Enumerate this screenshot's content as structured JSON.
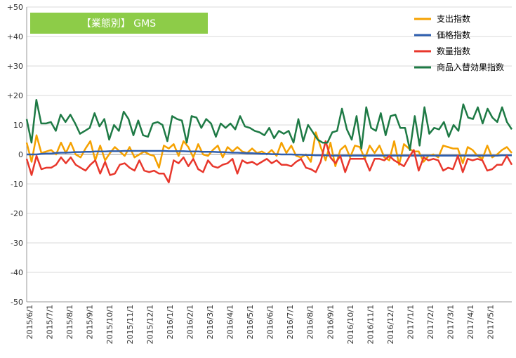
{
  "chart_data": {
    "type": "line",
    "title": "【業態別】 GMS",
    "ylim": [
      -50,
      50
    ],
    "yticks": [
      "+50",
      "+40",
      "+30",
      "+20",
      "10",
      "0",
      "-10",
      "-20",
      "-30",
      "-40",
      "-50"
    ],
    "ytick_values": [
      50,
      40,
      30,
      20,
      10,
      0,
      -10,
      -20,
      -30,
      -40,
      -50
    ],
    "xticks": [
      "2015/6/1",
      "2015/7/1",
      "2015/8/1",
      "2015/9/1",
      "2015/10/1",
      "2015/11/1",
      "2015/12/1",
      "2016/1/1",
      "2016/2/1",
      "2016/3/1",
      "2016/4/1",
      "2016/5/1",
      "2016/6/1",
      "2016/7/1",
      "2016/8/1",
      "2016/9/1",
      "2016/10/1",
      "2016/11/1",
      "2016/12/1",
      "2017/1/1",
      "2017/2/1",
      "2017/3/1",
      "2017/4/1",
      "2017/5/1"
    ],
    "grid": true,
    "legend_position": "top-right",
    "series": [
      {
        "name": "支出指数",
        "color": "#f5a100",
        "values": [
          4,
          -2.5,
          6.5,
          0.5,
          1,
          1.5,
          0,
          4,
          0.5,
          4,
          0,
          -1,
          2,
          4.5,
          -2,
          3,
          -2,
          0.5,
          2.5,
          1,
          -0.5,
          2.5,
          -1,
          0,
          1,
          0,
          -0.5,
          -4.5,
          3,
          2,
          3.5,
          -0.5,
          4.5,
          2.5,
          -1,
          3.5,
          0,
          -0.5,
          1.5,
          3,
          -1,
          2.5,
          1,
          2.5,
          1,
          0.5,
          2,
          0.5,
          1,
          0,
          1.5,
          -0.5,
          4,
          0.5,
          3,
          -0.5,
          -1,
          0,
          -2.5,
          7.5,
          2.5,
          -2,
          4,
          -4,
          1.5,
          3,
          -1,
          3,
          2.5,
          -1.5,
          3,
          0.5,
          3,
          -1,
          -2,
          4.5,
          -3.5,
          3.5,
          2,
          1,
          1,
          -2.5,
          -0.5,
          0,
          -1,
          3,
          2.5,
          2,
          2,
          -3,
          2.5,
          1.5,
          -0.5,
          -1.5,
          3,
          -1,
          0,
          1.5,
          2.5,
          0.5
        ]
      },
      {
        "name": "価格指数",
        "color": "#2e5eae",
        "values": [
          0,
          0,
          0,
          0.2,
          0.3,
          0.3,
          0.5,
          0.6,
          0.6,
          0.7,
          0.8,
          0.8,
          0.9,
          0.9,
          1,
          1,
          1,
          1.1,
          1.1,
          1.1,
          1.2,
          1.2,
          1.2,
          1.2,
          1.2,
          1.2,
          1.2,
          1.2,
          1.2,
          1.1,
          1.1,
          1.1,
          1.1,
          1,
          1,
          1,
          0.9,
          0.9,
          0.9,
          0.8,
          0.8,
          0.7,
          0.6,
          0.6,
          0.5,
          0.4,
          0.4,
          0.3,
          0.2,
          0.2,
          0.1,
          0.1,
          0,
          0,
          0,
          -0.1,
          -0.1,
          -0.2,
          -0.2,
          -0.3,
          -0.3,
          -0.3,
          -0.4,
          -0.4,
          -0.4,
          -0.4,
          -0.4,
          -0.4,
          -0.4,
          -0.4,
          -0.4,
          -0.4,
          -0.4,
          -0.4,
          -0.4,
          -0.4,
          -0.4,
          -0.4,
          -0.4,
          -0.4,
          -0.4,
          -0.4,
          -0.4,
          -0.4,
          -0.4,
          -0.4,
          -0.4,
          -0.4,
          -0.4,
          -0.4,
          -0.4,
          -0.4,
          -0.4,
          -0.4,
          -0.4,
          -0.4,
          -0.4,
          -0.3,
          -0.3,
          -0.3
        ]
      },
      {
        "name": "数量指数",
        "color": "#e8372c",
        "values": [
          -1.5,
          -7,
          -0.5,
          -5,
          -4.5,
          -4.5,
          -3.5,
          -1,
          -3,
          -1,
          -3.5,
          -4.5,
          -5.5,
          -3.5,
          -2,
          -6.5,
          -2.5,
          -7,
          -6.5,
          -3.5,
          -3,
          -4.5,
          -5.5,
          -2,
          -5.5,
          -6,
          -5.5,
          -6.5,
          -6.5,
          -9.5,
          -2,
          -3,
          -1,
          -4,
          -1.5,
          -5,
          -6,
          -2,
          -4,
          -4.5,
          -3.5,
          -3,
          -1.5,
          -6.5,
          -2,
          -3,
          -2.5,
          -3.5,
          -2.5,
          -1.5,
          -3,
          -2,
          -3.5,
          -3.5,
          -4,
          -2.5,
          -1.5,
          -4.5,
          -5,
          -6,
          -2.5,
          4.5,
          -1,
          -3,
          -0.5,
          -6,
          -1.5,
          -1.5,
          -1.5,
          -1.5,
          -5.5,
          -1.5,
          -1.5,
          -2,
          -0.5,
          -2,
          -3,
          -4,
          -1,
          1.5,
          -5.5,
          -1,
          -2,
          -1.5,
          -2,
          -5.5,
          -4.5,
          -5,
          -0.5,
          -6,
          -1.5,
          -2,
          -1.5,
          -2,
          -5.5,
          -5,
          -3.5,
          -3.5,
          -0.5,
          -3.5
        ]
      },
      {
        "name": "商品入替効果指数",
        "color": "#1e7a45",
        "values": [
          12,
          4,
          18.5,
          10.5,
          10.5,
          11,
          8,
          13.5,
          11,
          13.5,
          10.5,
          7,
          8,
          9,
          14,
          9.5,
          12,
          5,
          10,
          8,
          14.5,
          12,
          6.5,
          11.5,
          6.5,
          6,
          10.5,
          11,
          10,
          4.5,
          13,
          12,
          11.5,
          4,
          13,
          12.5,
          9,
          12,
          10.5,
          6,
          10.5,
          9,
          10.5,
          8.5,
          13,
          9.5,
          9,
          8,
          7.5,
          6.5,
          9,
          5.5,
          8,
          7,
          8,
          4,
          12,
          4.5,
          10,
          7.5,
          5,
          4,
          4,
          7.5,
          8,
          15.5,
          8.5,
          5,
          13,
          2,
          16,
          9,
          8,
          14,
          6.5,
          13,
          13.5,
          9,
          9,
          1.5,
          13,
          3,
          16,
          7,
          9,
          8.5,
          11,
          6,
          10,
          8,
          17,
          12.5,
          12,
          16,
          10.5,
          15.5,
          12.5,
          11,
          16,
          11,
          8.5
        ]
      }
    ]
  }
}
